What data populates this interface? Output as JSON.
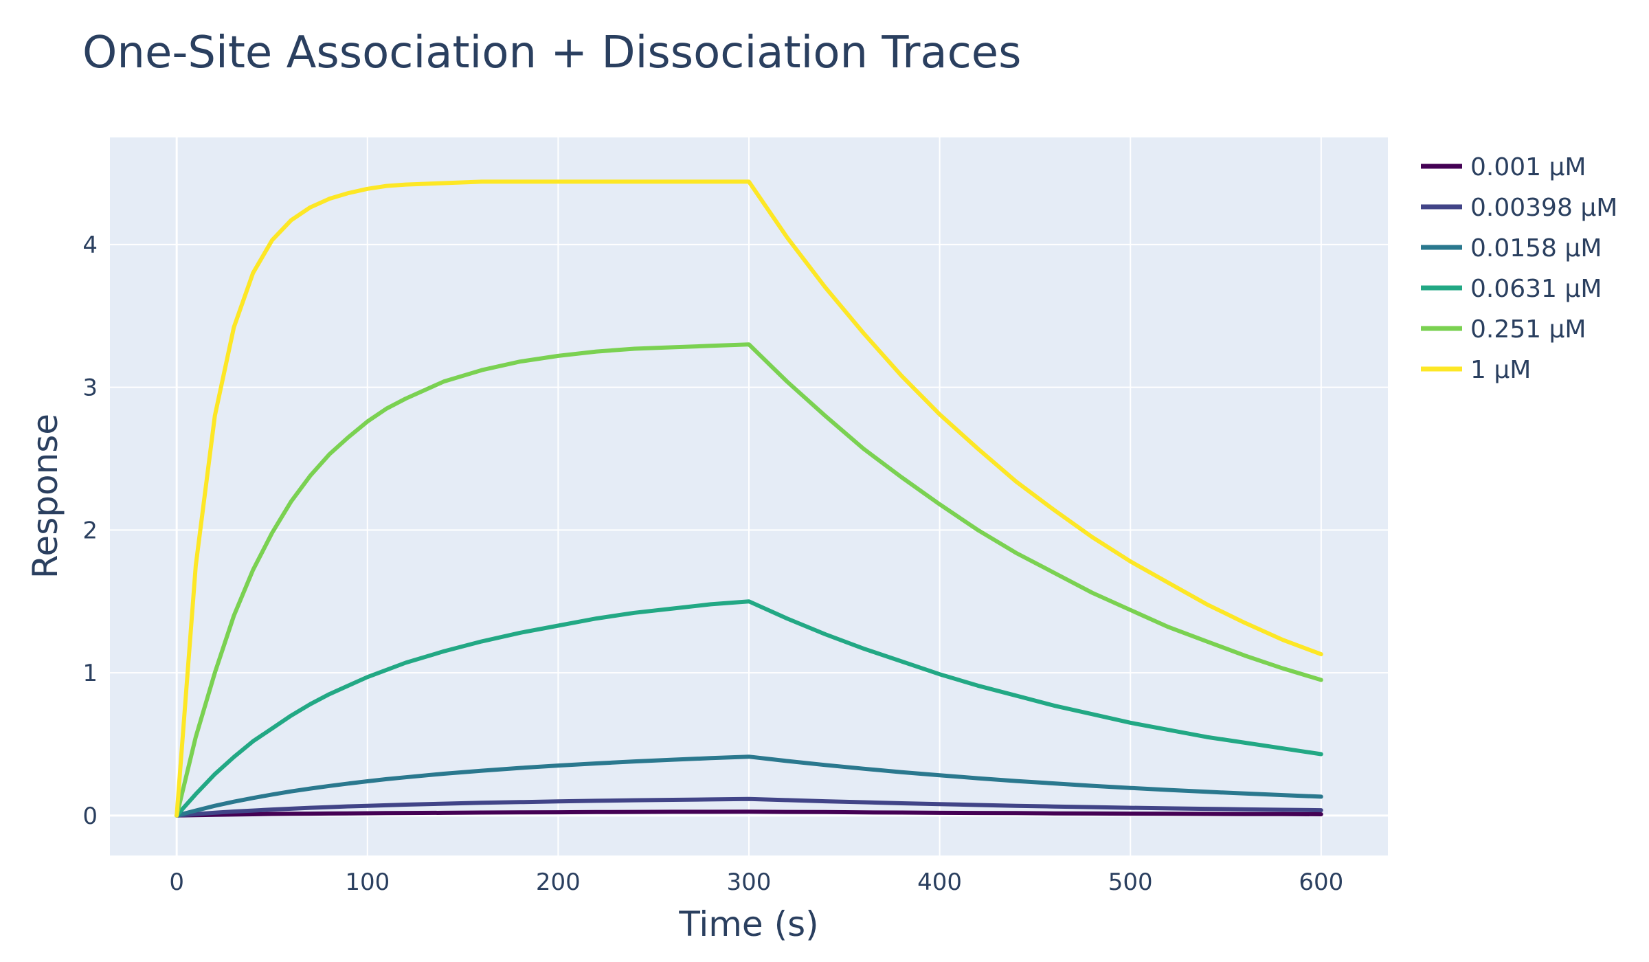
{
  "chart_data": {
    "type": "line",
    "title": "One-Site Association + Dissociation Traces",
    "xlabel": "Time (s)",
    "ylabel": "Response",
    "xlim": [
      -35,
      635
    ],
    "ylim": [
      -0.28,
      4.75
    ],
    "xticks": [
      0,
      100,
      200,
      300,
      400,
      500,
      600
    ],
    "yticks": [
      0,
      1,
      2,
      3,
      4
    ],
    "grid": true,
    "legend_position": "right",
    "background": "#e5ecf6",
    "x": [
      0,
      10,
      20,
      30,
      40,
      50,
      60,
      70,
      80,
      90,
      100,
      110,
      120,
      140,
      160,
      180,
      200,
      220,
      240,
      260,
      280,
      300,
      320,
      340,
      360,
      380,
      400,
      420,
      440,
      460,
      480,
      500,
      520,
      540,
      560,
      580,
      600
    ],
    "series": [
      {
        "name": "0.001 µM",
        "color": "#440154",
        "values": [
          0,
          0.003,
          0.005,
          0.007,
          0.009,
          0.011,
          0.012,
          0.013,
          0.014,
          0.015,
          0.016,
          0.017,
          0.018,
          0.019,
          0.021,
          0.022,
          0.023,
          0.024,
          0.025,
          0.026,
          0.026,
          0.027,
          0.025,
          0.024,
          0.022,
          0.021,
          0.019,
          0.018,
          0.017,
          0.015,
          0.014,
          0.013,
          0.012,
          0.011,
          0.01,
          0.01,
          0.009
        ]
      },
      {
        "name": "0.00398 µM",
        "color": "#414487",
        "values": [
          0,
          0.01,
          0.02,
          0.028,
          0.035,
          0.042,
          0.048,
          0.054,
          0.059,
          0.064,
          0.068,
          0.072,
          0.076,
          0.083,
          0.089,
          0.094,
          0.099,
          0.103,
          0.107,
          0.11,
          0.113,
          0.116,
          0.108,
          0.1,
          0.093,
          0.086,
          0.08,
          0.074,
          0.068,
          0.063,
          0.059,
          0.054,
          0.05,
          0.047,
          0.043,
          0.04,
          0.037
        ]
      },
      {
        "name": "0.0158 µM",
        "color": "#2a788e",
        "values": [
          0,
          0.035,
          0.068,
          0.097,
          0.123,
          0.147,
          0.169,
          0.189,
          0.207,
          0.224,
          0.24,
          0.255,
          0.268,
          0.293,
          0.314,
          0.333,
          0.35,
          0.365,
          0.379,
          0.391,
          0.402,
          0.412,
          0.382,
          0.354,
          0.328,
          0.304,
          0.282,
          0.261,
          0.242,
          0.225,
          0.208,
          0.193,
          0.179,
          0.166,
          0.154,
          0.143,
          0.132
        ]
      },
      {
        "name": "0.0631 µM",
        "color": "#22a884",
        "values": [
          0,
          0.15,
          0.29,
          0.41,
          0.52,
          0.61,
          0.7,
          0.78,
          0.85,
          0.91,
          0.97,
          1.02,
          1.07,
          1.15,
          1.22,
          1.28,
          1.33,
          1.38,
          1.42,
          1.45,
          1.48,
          1.5,
          1.38,
          1.27,
          1.17,
          1.08,
          0.99,
          0.91,
          0.84,
          0.77,
          0.71,
          0.65,
          0.6,
          0.55,
          0.51,
          0.47,
          0.43
        ]
      },
      {
        "name": "0.251 µM",
        "color": "#7ad151",
        "values": [
          0,
          0.55,
          1.0,
          1.4,
          1.72,
          1.98,
          2.2,
          2.38,
          2.53,
          2.65,
          2.76,
          2.85,
          2.92,
          3.04,
          3.12,
          3.18,
          3.22,
          3.25,
          3.27,
          3.28,
          3.29,
          3.3,
          3.04,
          2.8,
          2.57,
          2.37,
          2.18,
          2.0,
          1.84,
          1.7,
          1.56,
          1.44,
          1.32,
          1.22,
          1.12,
          1.03,
          0.95
        ]
      },
      {
        "name": "1 µM",
        "color": "#fde725",
        "values": [
          0,
          1.75,
          2.8,
          3.42,
          3.8,
          4.03,
          4.17,
          4.26,
          4.32,
          4.36,
          4.39,
          4.41,
          4.42,
          4.43,
          4.44,
          4.44,
          4.44,
          4.44,
          4.44,
          4.44,
          4.44,
          4.44,
          4.05,
          3.7,
          3.38,
          3.08,
          2.81,
          2.57,
          2.34,
          2.14,
          1.95,
          1.78,
          1.63,
          1.48,
          1.35,
          1.23,
          1.13
        ]
      }
    ]
  }
}
